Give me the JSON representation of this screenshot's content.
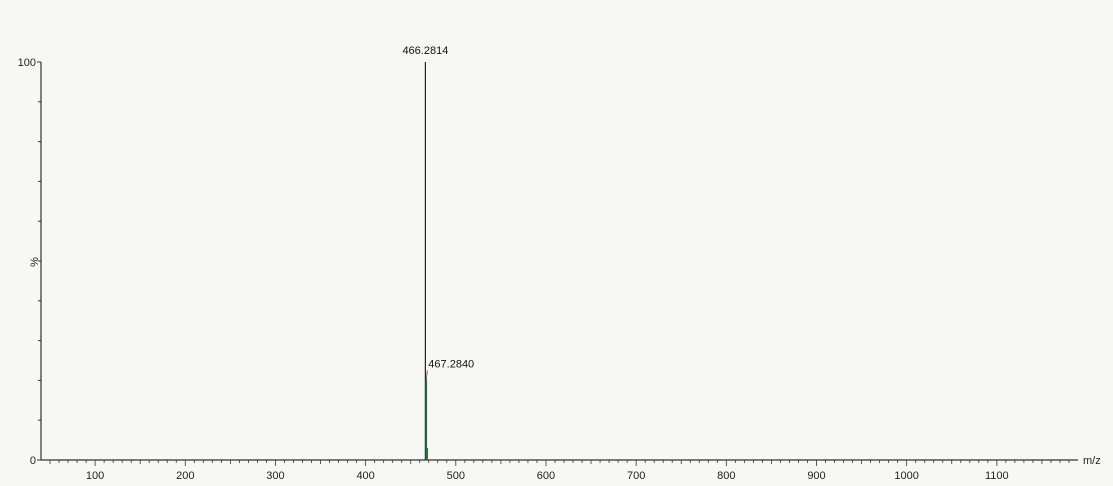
{
  "chart_data": {
    "type": "line",
    "title": "",
    "xlabel": "m/z",
    "ylabel": "%",
    "xlim": [
      40,
      1190
    ],
    "ylim": [
      0,
      100
    ],
    "x_ticks": [
      100,
      200,
      300,
      400,
      500,
      600,
      700,
      800,
      900,
      1000,
      1100
    ],
    "y_ticks": [
      0,
      100
    ],
    "y_tick_labels": [
      "0",
      "100"
    ],
    "grid": false,
    "peaks": [
      {
        "mz": 466.2814,
        "intensity": 100,
        "label": "466.2814"
      },
      {
        "mz": 467.284,
        "intensity": 20,
        "label": "467.2840"
      },
      {
        "mz": 468.29,
        "intensity": 3,
        "label": ""
      }
    ],
    "colors": {
      "axis": "#333333",
      "main_peak": "#222222",
      "isotope_peak": "#1f7a3a"
    }
  }
}
